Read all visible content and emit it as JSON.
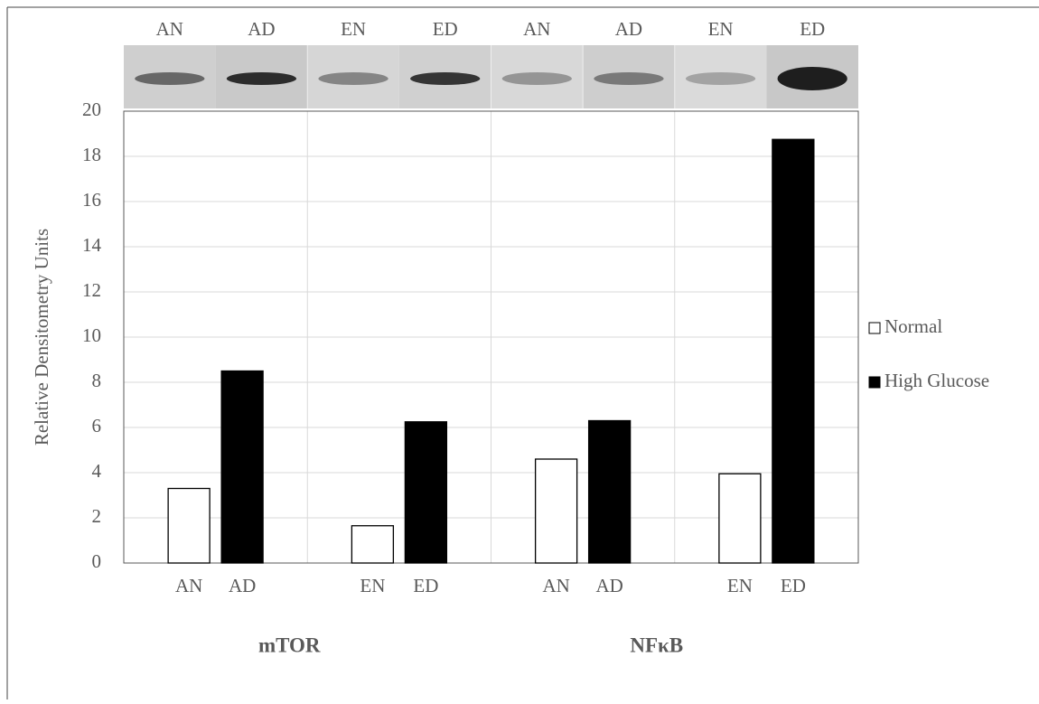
{
  "chart_data": {
    "type": "bar",
    "y_label": "Relative Densitometry Units",
    "categories": [
      "AN",
      "AD",
      "EN",
      "ED",
      "AN",
      "AD",
      "EN",
      "ED"
    ],
    "group_labels": [
      "mTOR",
      "NFκB"
    ],
    "blot_labels": [
      "AN",
      "AD",
      "EN",
      "ED",
      "AN",
      "AD",
      "EN",
      "ED"
    ],
    "series": [
      {
        "name": "Normal",
        "color": "#ffffff",
        "values": [
          3.3,
          null,
          1.65,
          null,
          4.6,
          null,
          3.95,
          null
        ]
      },
      {
        "name": "High Glucose",
        "color": "#000000",
        "values": [
          null,
          8.5,
          null,
          6.25,
          null,
          6.3,
          null,
          18.75
        ]
      }
    ],
    "ylim": [
      0,
      20
    ],
    "yticks": [
      0,
      2,
      4,
      6,
      8,
      10,
      12,
      14,
      16,
      18,
      20
    ],
    "grid": true,
    "legend": "right"
  }
}
